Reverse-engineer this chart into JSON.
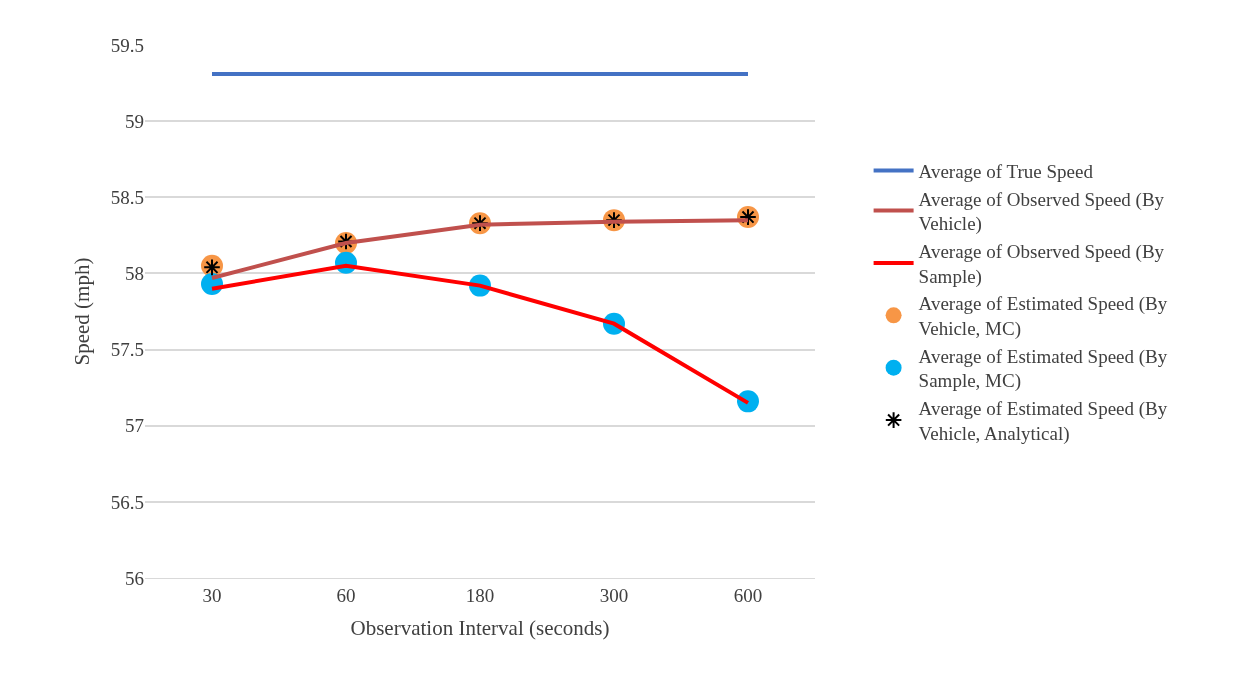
{
  "chart_data": {
    "type": "line",
    "xlabel": "Observation Interval (seconds)",
    "ylabel": "Speed (mph)",
    "categories": [
      "30",
      "60",
      "180",
      "300",
      "600"
    ],
    "series": [
      {
        "name": "Average of True Speed",
        "color": "#4472c4",
        "marker": "none",
        "values": [
          59.31,
          59.31,
          59.31,
          59.31,
          59.31
        ]
      },
      {
        "name": "Average of Observed Speed (By Vehicle)",
        "color": "#c0504d",
        "marker": "none",
        "values": [
          57.97,
          58.2,
          58.32,
          58.34,
          58.35
        ]
      },
      {
        "name": "Average of Observed Speed (By Sample)",
        "color": "#ff0000",
        "marker": "none",
        "values": [
          57.9,
          58.05,
          57.92,
          57.67,
          57.15
        ]
      },
      {
        "name": "Average of Estimated Speed (By Vehicle, MC)",
        "color": "#f79646",
        "type": "scatter",
        "marker": "circle",
        "values": [
          58.05,
          58.2,
          58.33,
          58.35,
          58.37
        ]
      },
      {
        "name": "Average of Estimated Speed (By Sample, MC)",
        "color": "#00b0f0",
        "type": "scatter",
        "marker": "circle",
        "values": [
          57.93,
          58.07,
          57.92,
          57.67,
          57.16
        ]
      },
      {
        "name": "Average of Estimated Speed (By Vehicle, Analytical)",
        "color": "#000000",
        "type": "scatter",
        "marker": "cross",
        "values": [
          58.04,
          58.21,
          58.33,
          58.35,
          58.37
        ]
      }
    ],
    "ylim": [
      56,
      59.5
    ],
    "yticks": [
      56,
      56.5,
      57,
      57.5,
      58,
      58.5,
      59,
      59.5
    ],
    "grid": "y",
    "legend": "right"
  }
}
